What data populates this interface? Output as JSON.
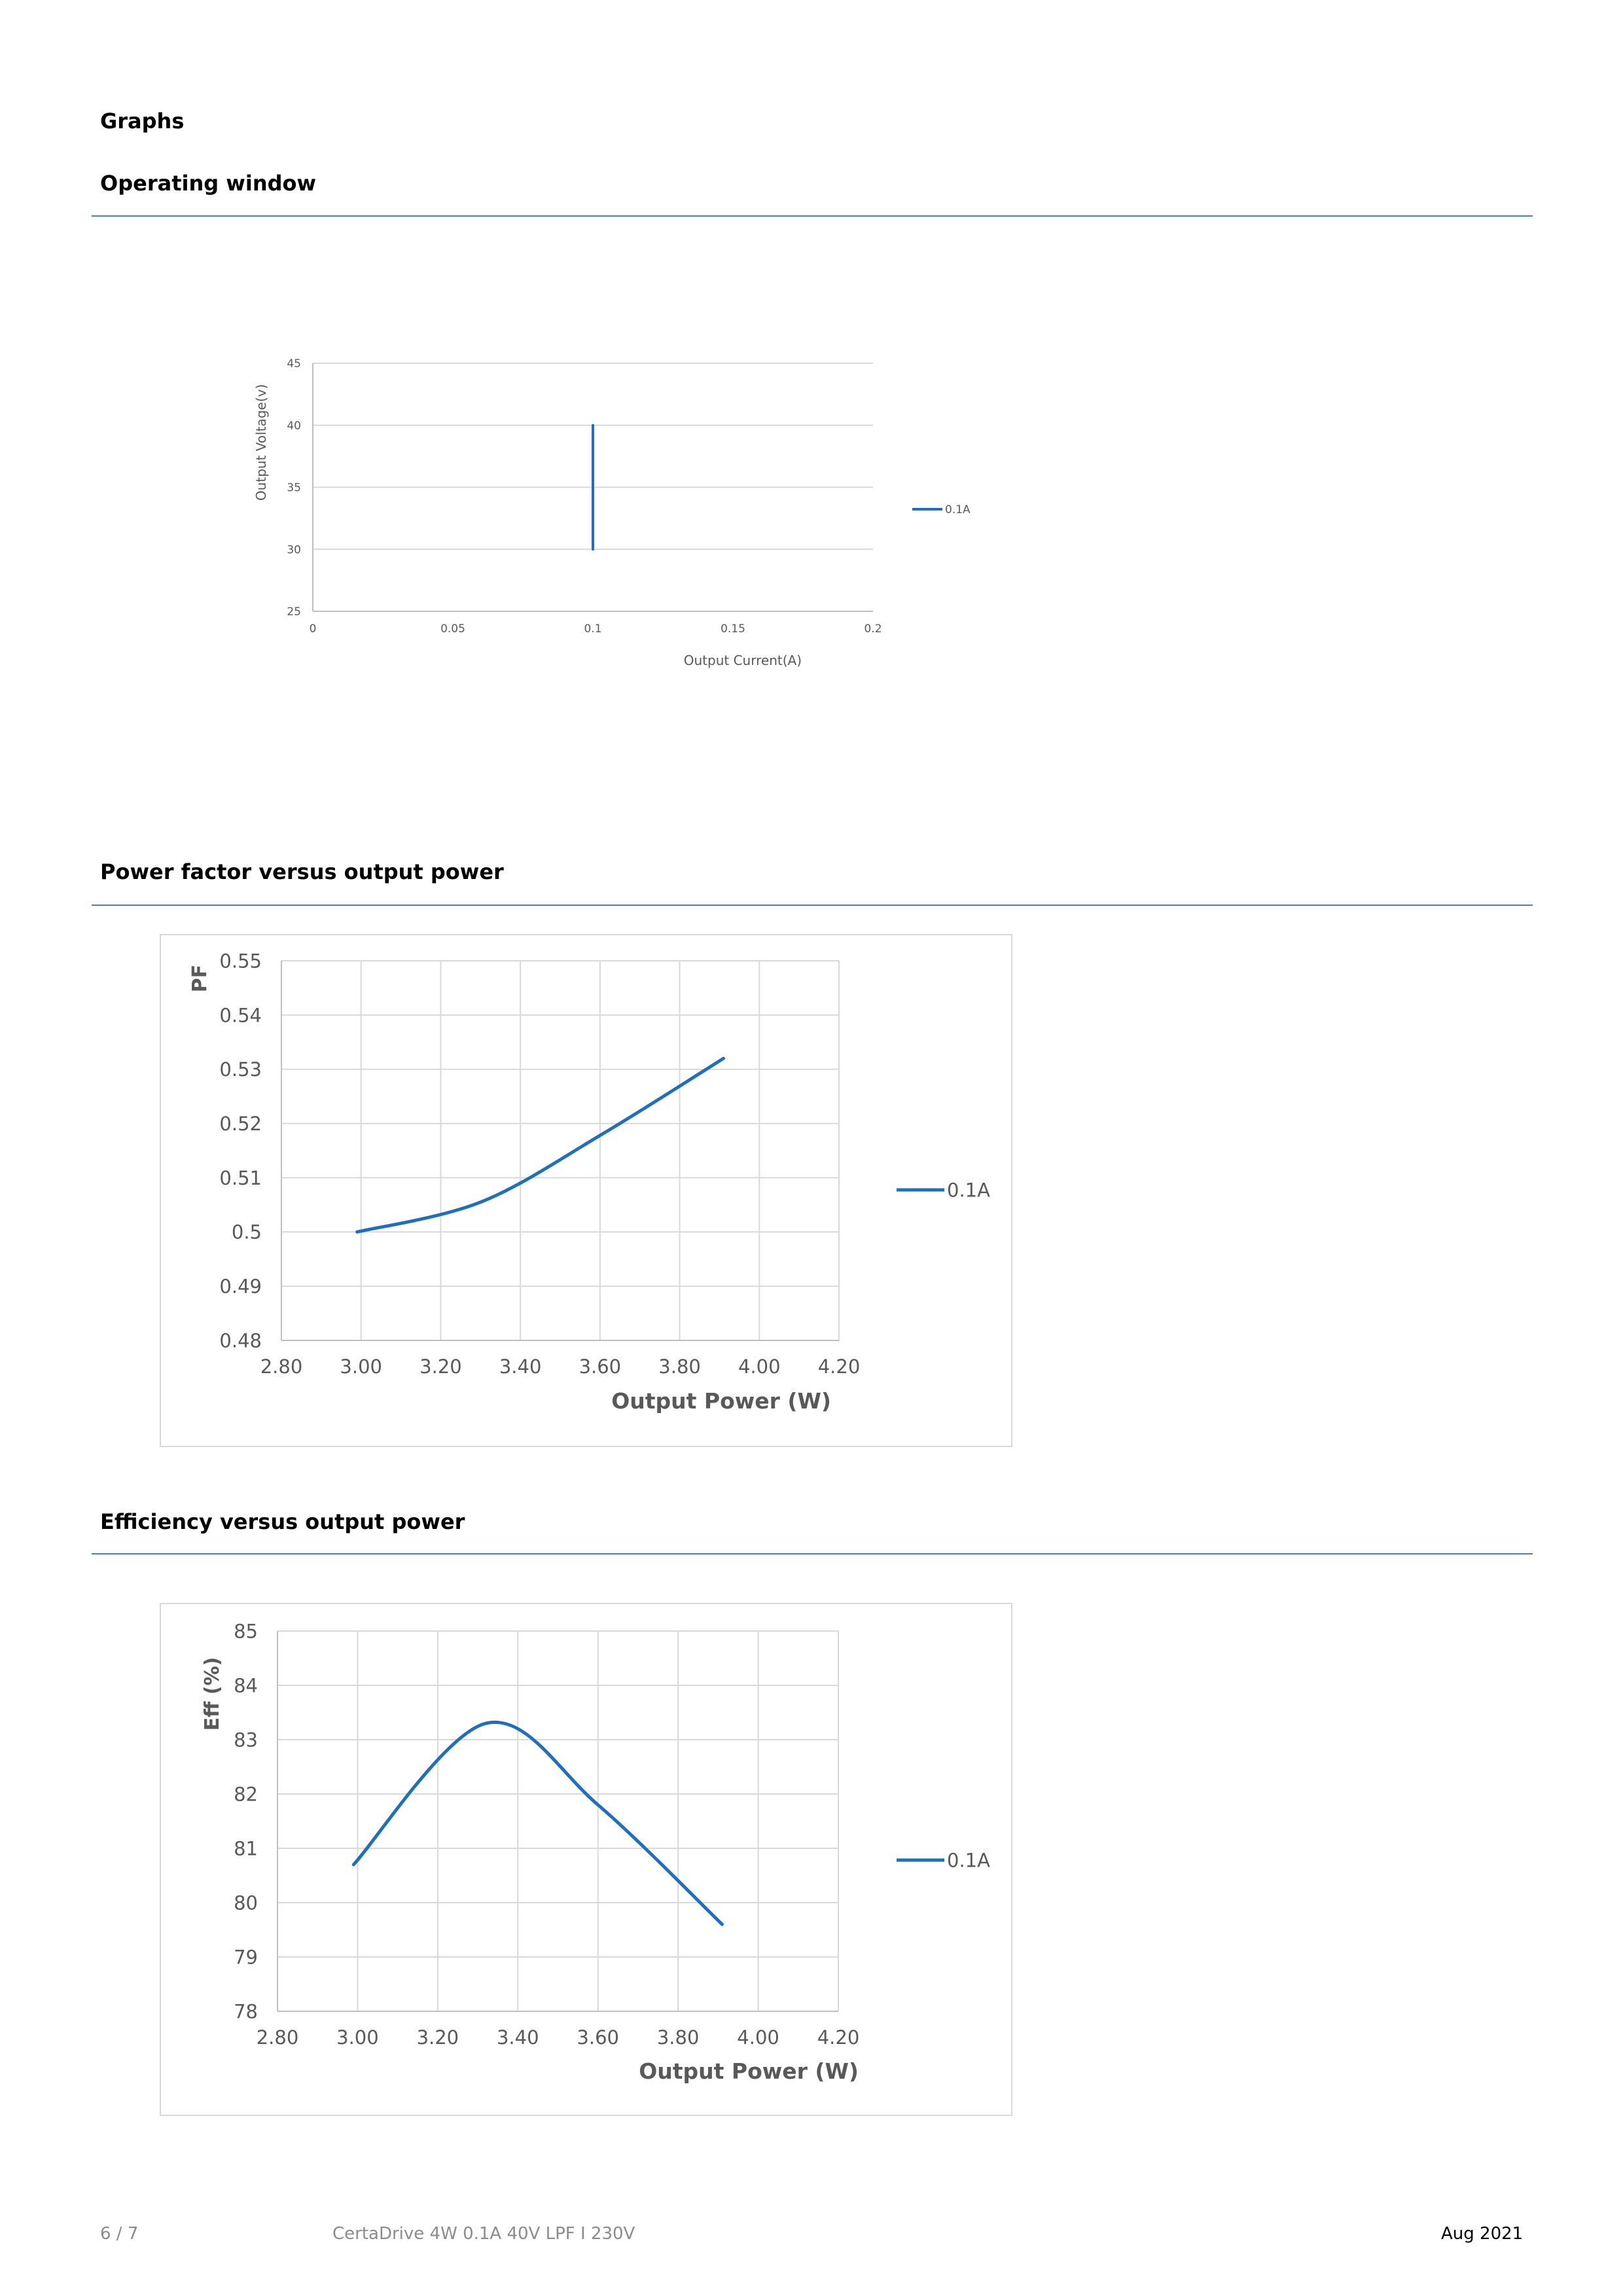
{
  "page": {
    "title": "Graphs"
  },
  "sections": [
    {
      "heading": "Operating window"
    },
    {
      "heading": "Power factor versus output power"
    },
    {
      "heading": "Efficiency versus output power"
    }
  ],
  "footer": {
    "page": "6 / 7",
    "product": "CertaDrive 4W 0.1A 40V LPF I 230V",
    "date": "Aug 2021"
  },
  "colors": {
    "series": "#1f6fbf",
    "grid": "#d9d9d9",
    "text": "#595959",
    "rule": "#4a7fc0"
  },
  "chart_data": [
    {
      "type": "line",
      "xlabel": "Output Current(A)",
      "ylabel": "Output Voltage(v)",
      "xlim": [
        0,
        0.2
      ],
      "ylim": [
        25,
        45
      ],
      "xticks": [
        "0",
        "0.05",
        "0.1",
        "0.15",
        "0.2"
      ],
      "yticks": [
        "25",
        "30",
        "35",
        "40",
        "45"
      ],
      "grid": "horizontal",
      "legend": "right",
      "series": [
        {
          "name": "0.1A",
          "points": [
            [
              0.1,
              30
            ],
            [
              0.1,
              40
            ]
          ]
        }
      ]
    },
    {
      "type": "line",
      "xlabel": "Output Power (W)",
      "ylabel": "PF",
      "xlim": [
        2.8,
        4.2
      ],
      "ylim": [
        0.48,
        0.55
      ],
      "xticks": [
        "2.80",
        "3.00",
        "3.20",
        "3.40",
        "3.60",
        "3.80",
        "4.00",
        "4.20"
      ],
      "yticks": [
        "0.48",
        "0.49",
        "0.5",
        "0.51",
        "0.52",
        "0.53",
        "0.54",
        "0.55"
      ],
      "grid": "both",
      "legend": "right",
      "series": [
        {
          "name": "0.1A",
          "points": [
            [
              2.99,
              0.5
            ],
            [
              3.3,
              0.5055
            ],
            [
              3.6,
              0.5178
            ],
            [
              3.91,
              0.532
            ]
          ]
        }
      ]
    },
    {
      "type": "line",
      "xlabel": "Output Power (W)",
      "ylabel": "Eff (%)",
      "xlim": [
        2.8,
        4.2
      ],
      "ylim": [
        78,
        85
      ],
      "xticks": [
        "2.80",
        "3.00",
        "3.20",
        "3.40",
        "3.60",
        "3.80",
        "4.00",
        "4.20"
      ],
      "yticks": [
        "78",
        "79",
        "80",
        "81",
        "82",
        "83",
        "84",
        "85"
      ],
      "grid": "both",
      "legend": "right",
      "series": [
        {
          "name": "0.1A",
          "points": [
            [
              2.99,
              80.7
            ],
            [
              3.32,
              83.3
            ],
            [
              3.6,
              81.8
            ],
            [
              3.91,
              79.6
            ]
          ]
        }
      ]
    }
  ]
}
